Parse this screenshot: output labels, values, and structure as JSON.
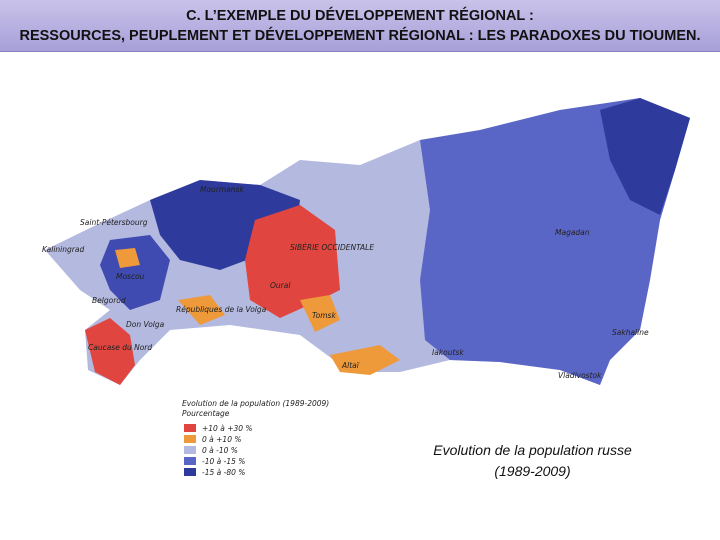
{
  "header": {
    "lines": [
      "C. L’EXEMPLE DU DÉVELOPPEMENT RÉGIONAL :",
      "RESSOURCES, PEUPLEMENT ET DÉVELOPPEMENT RÉGIONAL : LES PARADOXES DU TIOUMEN."
    ]
  },
  "map": {
    "labels": [
      "Mourmansk",
      "Saint-Pétersbourg",
      "Kaliningrad",
      "Moscou",
      "Belgorod",
      "Don Volga",
      "Républiques de la Volga",
      "Caucase du Nord",
      "SIBÉRIE OCCIDENTALE",
      "Oural",
      "Tomsk",
      "Altaï",
      "Iakoutsk",
      "Magadan",
      "Sakhaline",
      "Vladivostok"
    ],
    "legend": {
      "title": "Evolution de la population (1989-2009)",
      "subtitle": "Pourcentage",
      "items": [
        {
          "label": "+10 à +30 %",
          "color": "#e0463f"
        },
        {
          "label": "0 à +10 %",
          "color": "#ee9a3a"
        },
        {
          "label": "0 à -10 %",
          "color": "#b4b9e0"
        },
        {
          "label": "-10 à -15 %",
          "color": "#5a66c6"
        },
        {
          "label": "-15 à -80 %",
          "color": "#2e3a9c"
        }
      ]
    }
  },
  "caption": {
    "lines": [
      "Evolution de la population russe",
      "(1989-2009)"
    ]
  }
}
